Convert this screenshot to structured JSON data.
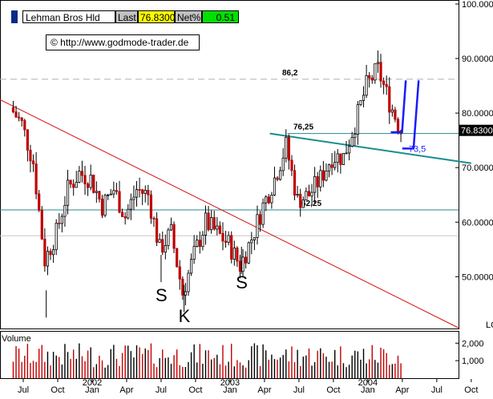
{
  "header": {
    "name": "Lehman Bros Hld",
    "last_label": "Last",
    "last_value": "76.8300",
    "net_label": "Net%",
    "net_value": "0.51"
  },
  "copyright": "© http://www.godmode-trader.de",
  "chart_data": {
    "type": "candlestick",
    "instrument": "Lehman Bros Hld",
    "last_price_label": "76.8300",
    "y_ticks": [
      {
        "value": 100,
        "label": "100.0000"
      },
      {
        "value": 90,
        "label": "90.0000"
      },
      {
        "value": 80,
        "label": "80.0000"
      },
      {
        "value": 70,
        "label": "70.0000"
      },
      {
        "value": 60,
        "label": "60.0000"
      },
      {
        "value": 50,
        "label": "50.0000"
      }
    ],
    "y_axis_truncated_label": "LO",
    "ylim": [
      40.5,
      100
    ],
    "x_ticks": [
      {
        "label": "Jul",
        "year": ""
      },
      {
        "label": "Oct",
        "year": ""
      },
      {
        "label": "Jan",
        "year": "2002"
      },
      {
        "label": "Apr",
        "year": ""
      },
      {
        "label": "Jul",
        "year": ""
      },
      {
        "label": "Oct",
        "year": ""
      },
      {
        "label": "Jan",
        "year": "2003"
      },
      {
        "label": "Apr",
        "year": ""
      },
      {
        "label": "Jul",
        "year": ""
      },
      {
        "label": "Oct",
        "year": ""
      },
      {
        "label": "Jan",
        "year": "2004"
      },
      {
        "label": "Apr",
        "year": ""
      },
      {
        "label": "Jul",
        "year": ""
      },
      {
        "label": "Oct",
        "year": ""
      }
    ],
    "horizontal_levels": [
      {
        "value": 86.2,
        "label": "86,2",
        "style": "dashed"
      },
      {
        "value": 76.25,
        "label": "76,25",
        "style": "solid"
      },
      {
        "value": 62.25,
        "label": "62,25",
        "style": "solid"
      },
      {
        "value": 57.5,
        "label": "",
        "style": "solid"
      }
    ],
    "annotations": [
      {
        "text": "S",
        "date": "2002-07"
      },
      {
        "text": "K",
        "date": "2002-09"
      },
      {
        "text": "S",
        "date": "2003-02"
      },
      {
        "text": "73,5",
        "date": "2004-04"
      }
    ],
    "trendlines": [
      {
        "color": "red",
        "from": [
          "2001-06",
          83
        ],
        "to": [
          "2004-09",
          40.5
        ]
      },
      {
        "color": "teal",
        "from": [
          "2003-06",
          76.25
        ],
        "to": [
          "2004-10",
          70.8
        ]
      }
    ],
    "projection_arrows": [
      {
        "from": [
          "2004-03",
          76.5
        ],
        "to": [
          "2004-05",
          86
        ]
      },
      {
        "from": [
          "2004-04",
          73.5
        ],
        "to": [
          "2004-05",
          86
        ]
      }
    ],
    "volume": {
      "label": "Volume",
      "ticks": [
        {
          "value": 2000,
          "label": "2,000"
        },
        {
          "value": 1000,
          "label": "1,000"
        }
      ],
      "ylim": [
        0,
        2700
      ]
    },
    "series": [
      {
        "date": "2001-06",
        "close": 81
      },
      {
        "date": "2001-07",
        "close": 78
      },
      {
        "date": "2001-08",
        "close": 71
      },
      {
        "date": "2001-09",
        "close": 53
      },
      {
        "date": "2001-10",
        "close": 58
      },
      {
        "date": "2001-11",
        "close": 66
      },
      {
        "date": "2001-12",
        "close": 69
      },
      {
        "date": "2002-01",
        "close": 68
      },
      {
        "date": "2002-02",
        "close": 63
      },
      {
        "date": "2002-03",
        "close": 66
      },
      {
        "date": "2002-04",
        "close": 61
      },
      {
        "date": "2002-05",
        "close": 66
      },
      {
        "date": "2002-06",
        "close": 65
      },
      {
        "date": "2002-07",
        "close": 55
      },
      {
        "date": "2002-08",
        "close": 58
      },
      {
        "date": "2002-09",
        "close": 47
      },
      {
        "date": "2002-10",
        "close": 54
      },
      {
        "date": "2002-11",
        "close": 60
      },
      {
        "date": "2002-12",
        "close": 58
      },
      {
        "date": "2003-01",
        "close": 56
      },
      {
        "date": "2003-02",
        "close": 52
      },
      {
        "date": "2003-03",
        "close": 57
      },
      {
        "date": "2003-04",
        "close": 63
      },
      {
        "date": "2003-05",
        "close": 68
      },
      {
        "date": "2003-06",
        "close": 74
      },
      {
        "date": "2003-07",
        "close": 64
      },
      {
        "date": "2003-08",
        "close": 65
      },
      {
        "date": "2003-09",
        "close": 68
      },
      {
        "date": "2003-10",
        "close": 72
      },
      {
        "date": "2003-11",
        "close": 72
      },
      {
        "date": "2003-12",
        "close": 78
      },
      {
        "date": "2004-01",
        "close": 85
      },
      {
        "date": "2004-02",
        "close": 88
      },
      {
        "date": "2004-03",
        "close": 82
      },
      {
        "date": "2004-04",
        "close": 76.83
      }
    ]
  }
}
